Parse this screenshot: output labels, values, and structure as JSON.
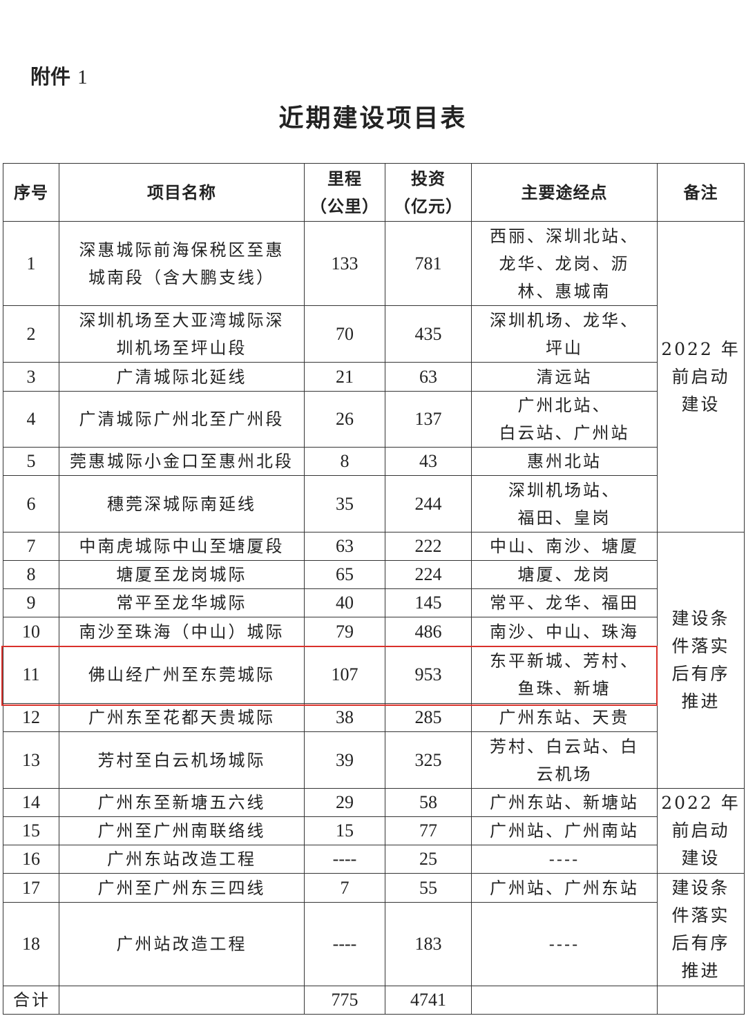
{
  "header": {
    "attachment_label": "附件",
    "attachment_number": "1",
    "title": "近期建设项目表"
  },
  "table": {
    "columns": [
      "序号",
      "项目名称",
      "里程\n（公里）",
      "投资\n（亿元）",
      "主要途经点",
      "备注"
    ],
    "rows": [
      {
        "no": "1",
        "name": "深惠城际前海保税区至惠\n城南段（含大鹏支线）",
        "km": "133",
        "invest": "781",
        "via": "西丽、深圳北站、\n龙华、龙岗、沥\n林、惠城南"
      },
      {
        "no": "2",
        "name": "深圳机场至大亚湾城际深\n圳机场至坪山段",
        "km": "70",
        "invest": "435",
        "via": "深圳机场、龙华、\n坪山"
      },
      {
        "no": "3",
        "name": "广清城际北延线",
        "km": "21",
        "invest": "63",
        "via": "清远站"
      },
      {
        "no": "4",
        "name": "广清城际广州北至广州段",
        "km": "26",
        "invest": "137",
        "via": "广州北站、\n白云站、广州站"
      },
      {
        "no": "5",
        "name": "莞惠城际小金口至惠州北段",
        "km": "8",
        "invest": "43",
        "via": "惠州北站"
      },
      {
        "no": "6",
        "name": "穗莞深城际南延线",
        "km": "35",
        "invest": "244",
        "via": "深圳机场站、\n福田、皇岗"
      },
      {
        "no": "7",
        "name": "中南虎城际中山至塘厦段",
        "km": "63",
        "invest": "222",
        "via": "中山、南沙、塘厦"
      },
      {
        "no": "8",
        "name": "塘厦至龙岗城际",
        "km": "65",
        "invest": "224",
        "via": "塘厦、龙岗"
      },
      {
        "no": "9",
        "name": "常平至龙华城际",
        "km": "40",
        "invest": "145",
        "via": "常平、龙华、福田"
      },
      {
        "no": "10",
        "name": "南沙至珠海（中山）城际",
        "km": "79",
        "invest": "486",
        "via": "南沙、中山、珠海"
      },
      {
        "no": "11",
        "name": "佛山经广州至东莞城际",
        "km": "107",
        "invest": "953",
        "via": "东平新城、芳村、\n鱼珠、新塘"
      },
      {
        "no": "12",
        "name": "广州东至花都天贵城际",
        "km": "38",
        "invest": "285",
        "via": "广州东站、天贵"
      },
      {
        "no": "13",
        "name": "芳村至白云机场城际",
        "km": "39",
        "invest": "325",
        "via": "芳村、白云站、白\n云机场"
      },
      {
        "no": "14",
        "name": "广州东至新塘五六线",
        "km": "29",
        "invest": "58",
        "via": "广州东站、新塘站"
      },
      {
        "no": "15",
        "name": "广州至广州南联络线",
        "km": "15",
        "invest": "77",
        "via": "广州站、广州南站"
      },
      {
        "no": "16",
        "name": "广州东站改造工程",
        "km": "----",
        "invest": "25",
        "via": "----"
      },
      {
        "no": "17",
        "name": "广州至广州东三四线",
        "km": "7",
        "invest": "55",
        "via": "广州站、广州东站"
      },
      {
        "no": "18",
        "name": "广州站改造工程",
        "km": "----",
        "invest": "183",
        "via": "----"
      }
    ],
    "remarks": [
      {
        "text": "2022 年\n前启动\n建设",
        "start": 1,
        "span": 6
      },
      {
        "text": "建设条\n件落实\n后有序\n推进",
        "start": 7,
        "span": 7
      },
      {
        "text": "2022 年\n前启动\n建设",
        "start": 14,
        "span": 3
      },
      {
        "text": "建设条\n件落实\n后有序\n推进",
        "start": 17,
        "span": 2
      }
    ],
    "total": {
      "label": "合计",
      "km": "775",
      "invest": "4741"
    }
  },
  "highlight": {
    "row": "11",
    "color": "#d9302a"
  }
}
